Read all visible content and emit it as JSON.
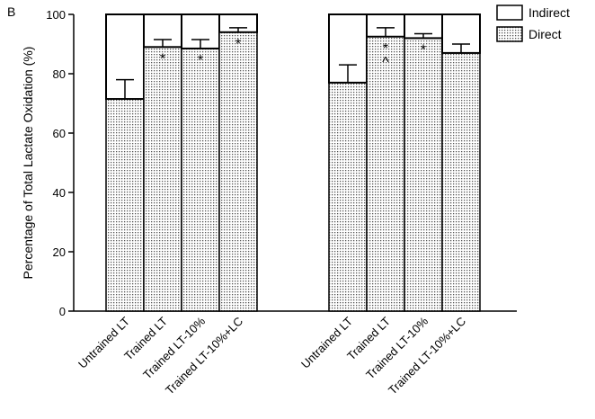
{
  "panel_label": "B",
  "chart_data": {
    "type": "bar",
    "stacked": true,
    "title": "",
    "xlabel": "",
    "ylabel": "Percentage of Total Lactate Oxidation (%)",
    "ylim": [
      0,
      100
    ],
    "yticks": [
      0,
      20,
      40,
      60,
      80,
      100
    ],
    "grid": false,
    "legend_position": "top-right",
    "legend": [
      {
        "name": "Indirect",
        "fill": "plain"
      },
      {
        "name": "Direct",
        "fill": "dotted"
      }
    ],
    "groups": [
      {
        "categories": [
          "Untrained LT",
          "Trained LT",
          "Trained LT-10%",
          "Trained LT-10%+LC"
        ],
        "series": [
          {
            "name": "Direct",
            "values": [
              71.5,
              89,
              88.5,
              94
            ]
          },
          {
            "name": "Indirect",
            "values": [
              28.5,
              11,
              11.5,
              6
            ]
          }
        ],
        "error_bar_top": [
          78,
          91.5,
          91.5,
          95.5
        ],
        "annotations": [
          "",
          "*",
          "*",
          "*"
        ]
      },
      {
        "categories": [
          "Untrained LT",
          "Trained LT",
          "Trained LT-10%",
          "Trained LT-10%+LC"
        ],
        "series": [
          {
            "name": "Direct",
            "values": [
              77,
              92.5,
              92,
              87
            ]
          },
          {
            "name": "Indirect",
            "values": [
              23,
              7.5,
              8,
              13
            ]
          }
        ],
        "error_bar_top": [
          83,
          95.5,
          93.5,
          90
        ],
        "annotations": [
          "",
          "*\n^",
          "*",
          ""
        ]
      }
    ]
  }
}
